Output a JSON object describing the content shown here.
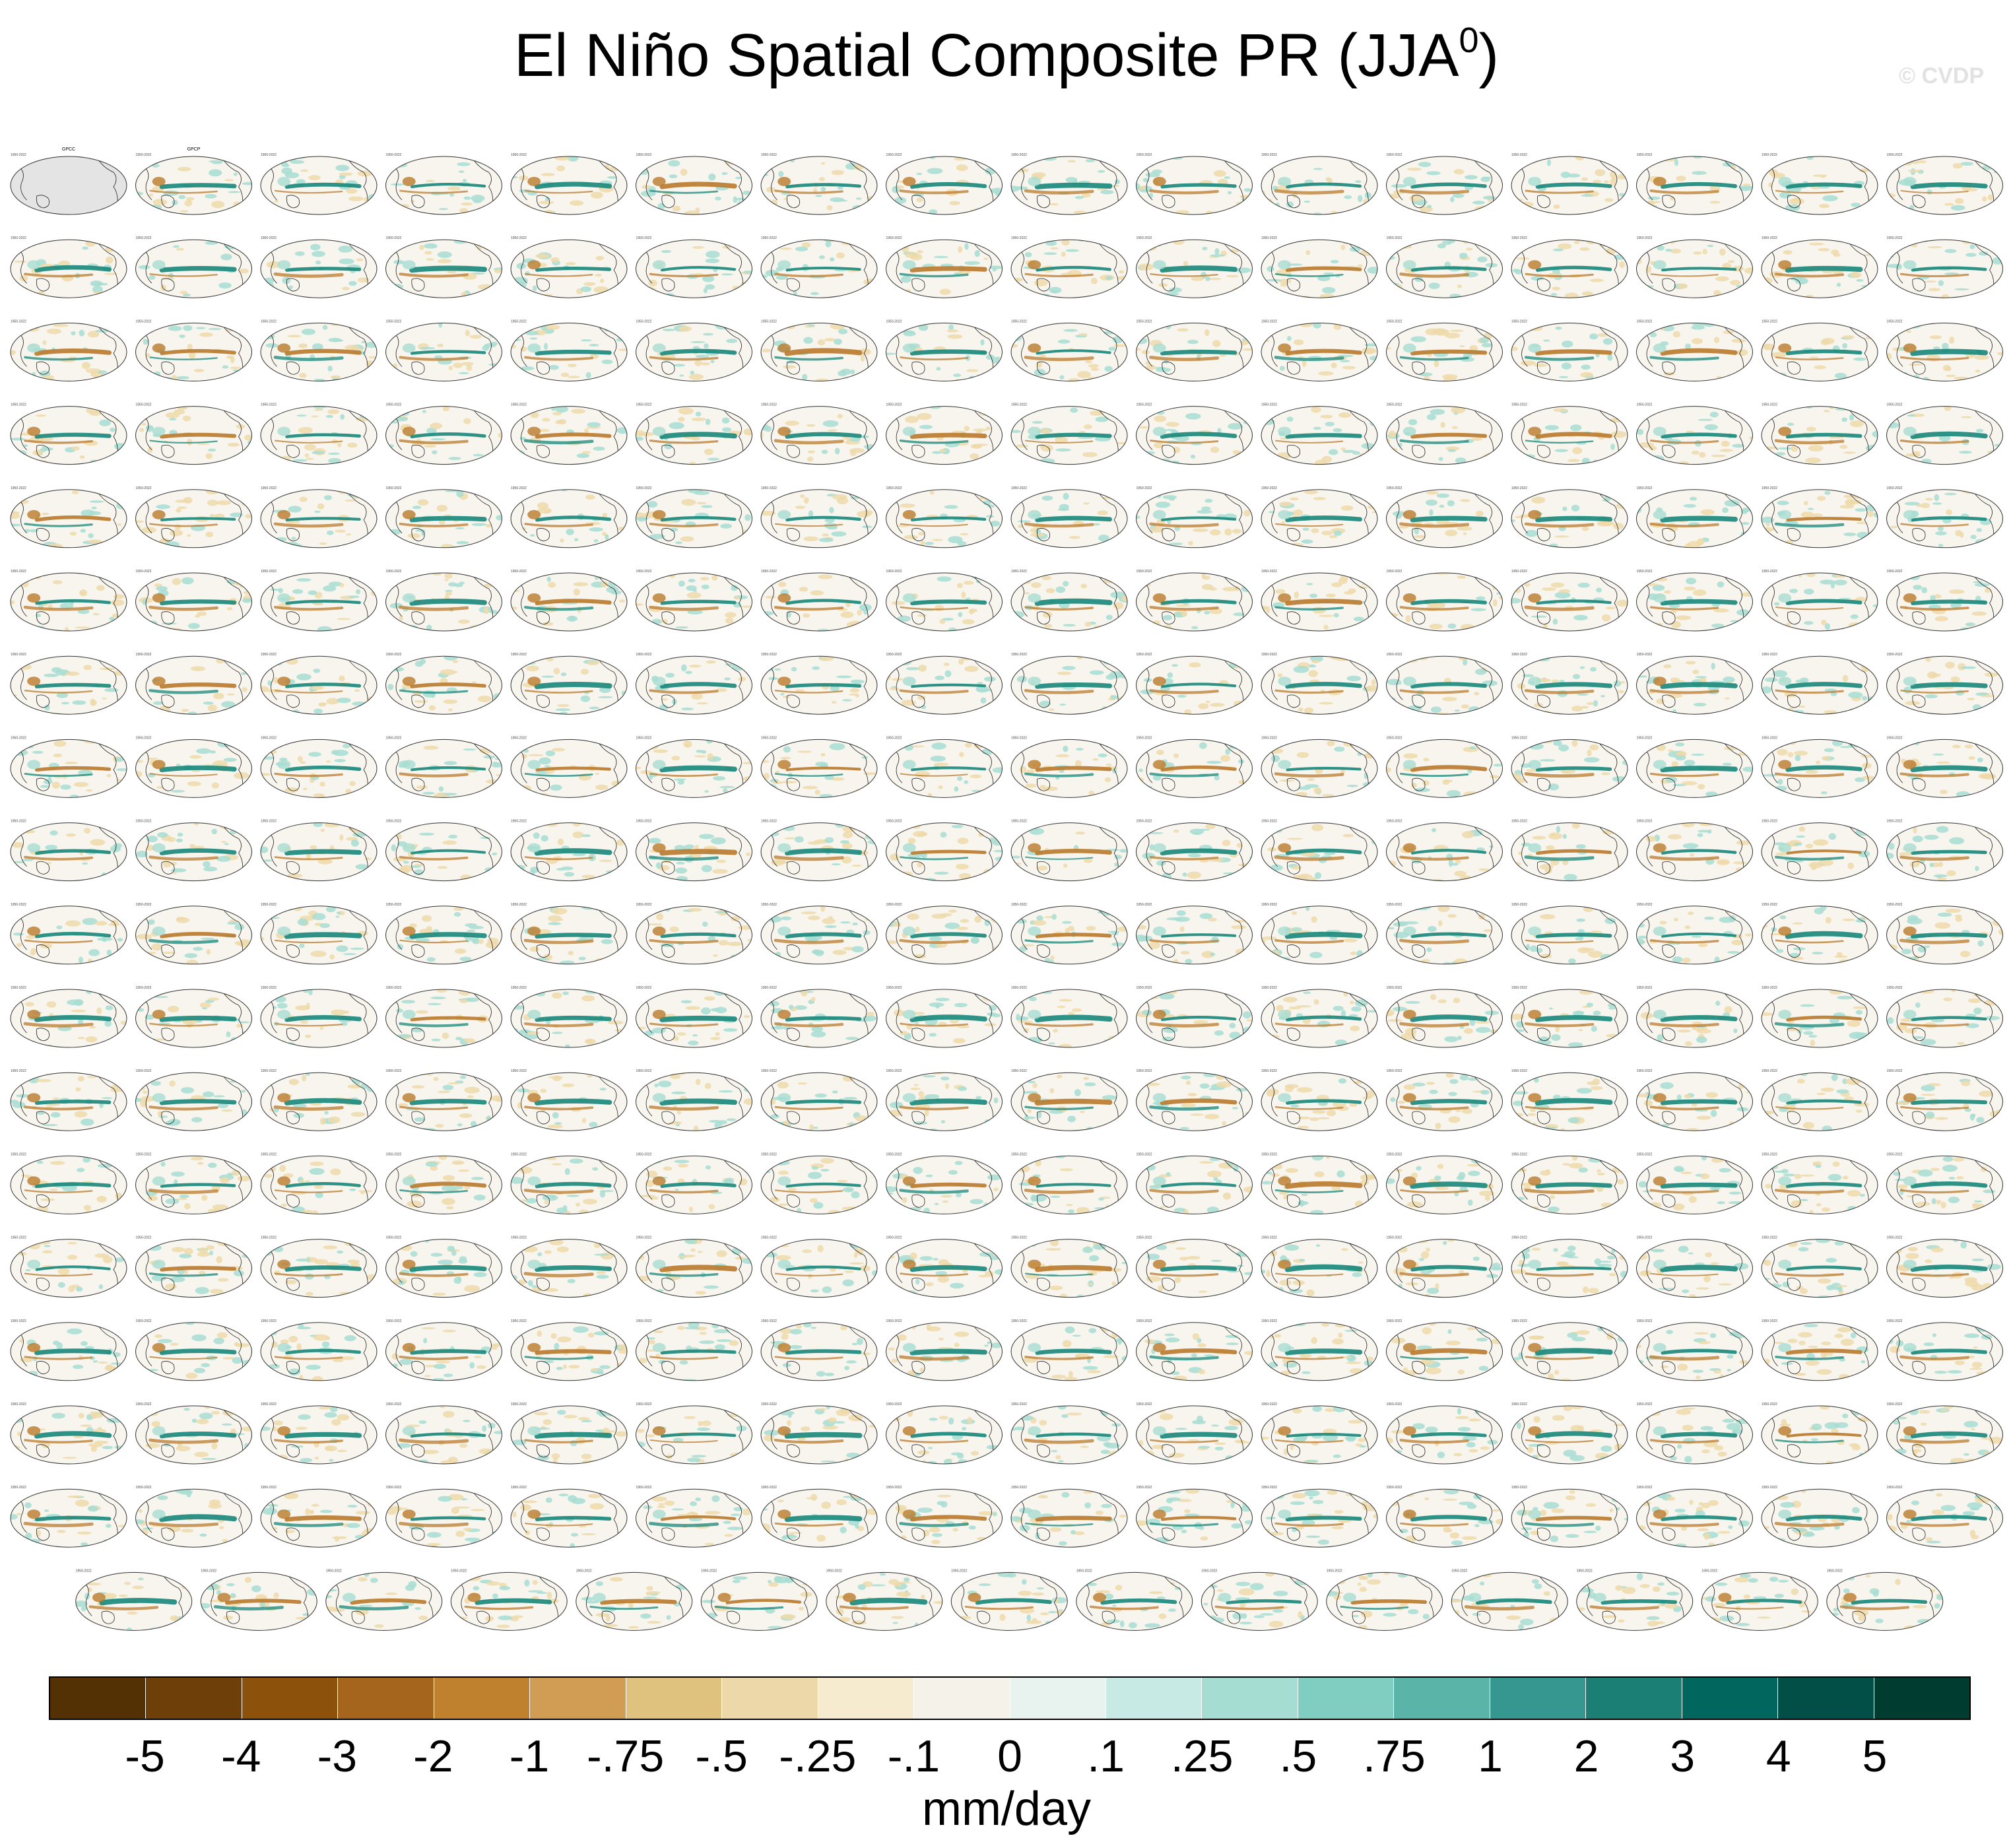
{
  "title": {
    "text": "El Niño Spatial Composite PR (JJA",
    "superscript": "0",
    "close": ")"
  },
  "credit": "© CVDP",
  "panels": {
    "rows": 18,
    "cols": 16,
    "last_row_count": 15,
    "first_panel_title": "GPCC",
    "second_panel_title": "GPCP",
    "period": "1950-2022",
    "title_colors": [
      "#000000",
      "#000000",
      "#2a7fb8",
      "#5aa7d0",
      "#c26b6b",
      "#8f7fd6"
    ],
    "map_colors": {
      "ocean": "#f7f5ee",
      "land_outline": "#222222",
      "border": "#333333",
      "wet": "#18877a",
      "dry": "#b97a2c",
      "light_wet": "#a8ddd2",
      "light_dry": "#eed9aa"
    }
  },
  "chart_data": {
    "type": "heatmap",
    "title": "El Niño Spatial Composite PR (JJA0)",
    "colorbar": {
      "units": "mm/day",
      "levels": [
        "-5",
        "-4",
        "-3",
        "-2",
        "-1",
        "-.75",
        "-.5",
        "-.25",
        "-.1",
        "0",
        ".1",
        ".25",
        ".5",
        ".75",
        "1",
        "2",
        "3",
        "4",
        "5"
      ],
      "colors": [
        "#543005",
        "#6f3f0a",
        "#8c510a",
        "#a6651c",
        "#bf812d",
        "#d19d55",
        "#dfc27d",
        "#ecd8a8",
        "#f6ebcf",
        "#f5f2ea",
        "#e8f3ef",
        "#c7eae5",
        "#a6ddd3",
        "#80cdc1",
        "#5ab4a8",
        "#35978f",
        "#1b7f76",
        "#01665e",
        "#014f46",
        "#003c30"
      ]
    }
  }
}
